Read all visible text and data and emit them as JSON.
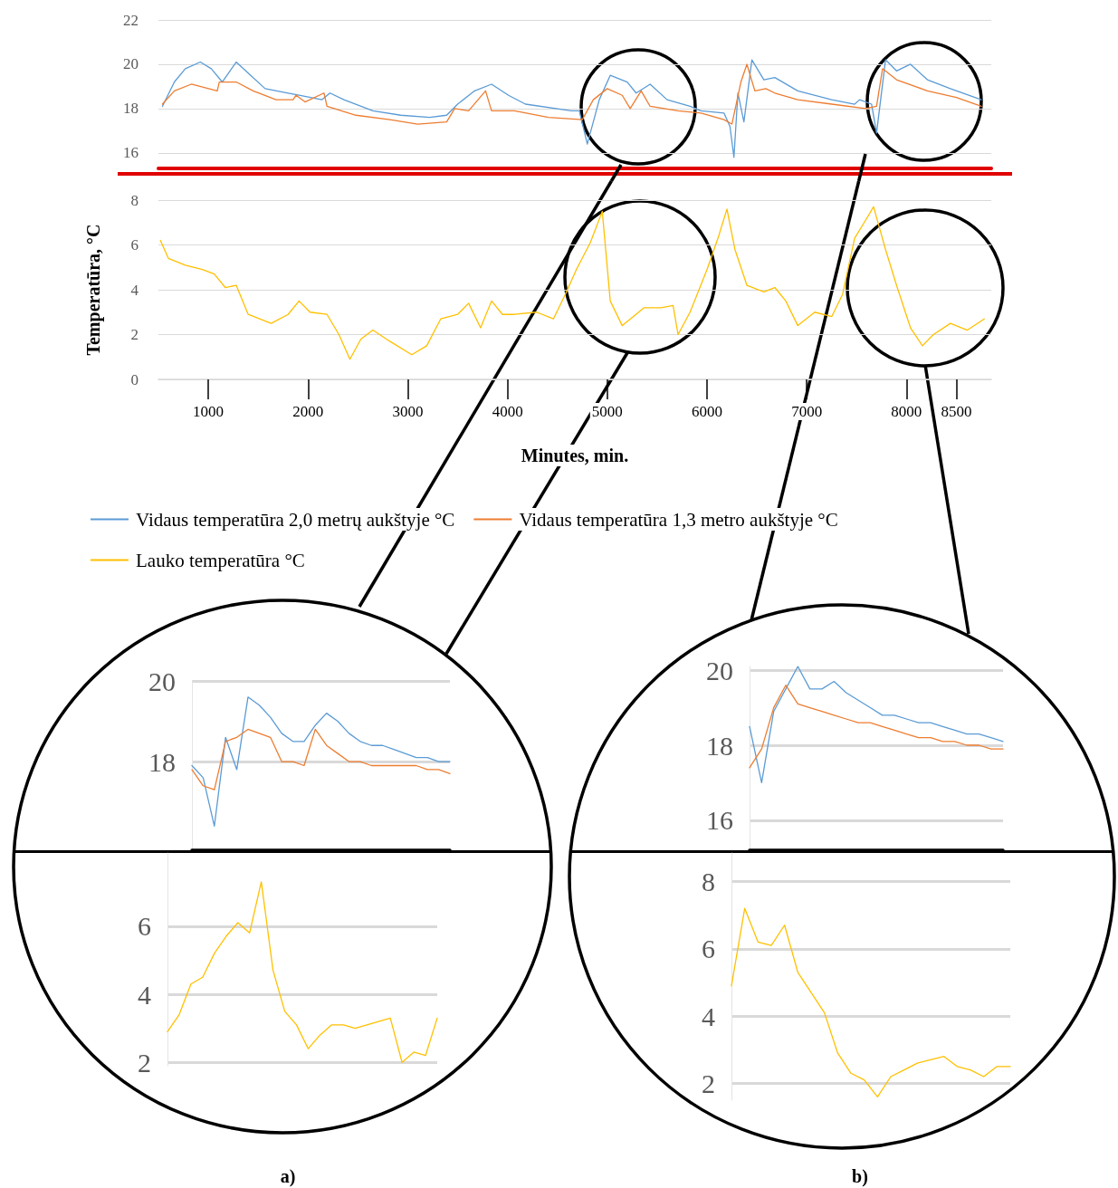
{
  "chart_data": [
    {
      "type": "line",
      "xlim": [
        500,
        8850
      ],
      "xticks": [
        1000,
        2000,
        3000,
        4000,
        5000,
        6000,
        7000,
        8000,
        8500
      ],
      "ylim": [
        15.3,
        22
      ],
      "yticks": [
        16,
        18,
        20,
        22
      ],
      "tick_labels": "y",
      "grid": "y",
      "legend": "bottom",
      "marker": "none",
      "line_style": "solid",
      "series": [
        {
          "name": "Vidaus temperatūra 2,0 metrų aukštyje °C",
          "color": "#5b9bd5",
          "x": [
            540,
            660,
            770,
            920,
            1030,
            1140,
            1280,
            1400,
            1570,
            1800,
            1910,
            2140,
            2220,
            2360,
            2650,
            2930,
            3220,
            3390,
            3500,
            3670,
            3840,
            4010,
            4180,
            4640,
            4720,
            4800,
            4920,
            5030,
            5200,
            5290,
            5430,
            5600,
            5830,
            5940,
            6170,
            6230,
            6270,
            6310,
            6370,
            6450,
            6570,
            6680,
            6910,
            7250,
            7480,
            7530,
            7650,
            7700,
            7790,
            7900,
            8040,
            8210,
            8440,
            8750
          ],
          "values": [
            18.1,
            19.2,
            19.8,
            20.1,
            19.8,
            19.2,
            20.1,
            19.6,
            18.9,
            18.7,
            18.6,
            18.4,
            18.7,
            18.4,
            17.9,
            17.7,
            17.6,
            17.7,
            18.2,
            18.8,
            19.1,
            18.6,
            18.2,
            17.9,
            17.9,
            16.4,
            18.4,
            19.5,
            19.2,
            18.7,
            19.1,
            18.4,
            18.1,
            17.9,
            17.8,
            17.2,
            15.8,
            18.7,
            17.4,
            20.2,
            19.3,
            19.4,
            18.8,
            18.4,
            18.2,
            18.4,
            18.2,
            16.9,
            20.2,
            19.7,
            20.0,
            19.3,
            18.9,
            18.4
          ]
        },
        {
          "name": "Vidaus temperatūra 1,3 metro aukštyje °C",
          "color": "#ed7d31",
          "x": [
            540,
            660,
            830,
            1090,
            1110,
            1280,
            1450,
            1680,
            1850,
            1880,
            1970,
            2160,
            2190,
            2480,
            2820,
            3100,
            3390,
            3470,
            3610,
            3780,
            3840,
            4070,
            4410,
            4750,
            4860,
            5000,
            5150,
            5230,
            5340,
            5430,
            5710,
            5940,
            6170,
            6250,
            6340,
            6400,
            6480,
            6590,
            6680,
            6910,
            7250,
            7590,
            7700,
            7760,
            7900,
            8210,
            8500,
            8750
          ],
          "values": [
            18.2,
            18.8,
            19.1,
            18.8,
            19.2,
            19.2,
            18.8,
            18.4,
            18.4,
            18.6,
            18.3,
            18.7,
            18.1,
            17.7,
            17.5,
            17.3,
            17.4,
            18.0,
            17.9,
            18.8,
            17.9,
            17.9,
            17.6,
            17.5,
            18.4,
            18.9,
            18.6,
            18.0,
            18.8,
            18.1,
            17.9,
            17.8,
            17.5,
            17.3,
            19.2,
            20.0,
            18.8,
            18.9,
            18.7,
            18.4,
            18.2,
            18.0,
            18.1,
            19.8,
            19.3,
            18.8,
            18.5,
            18.1
          ]
        }
      ]
    },
    {
      "type": "line",
      "xlim": [
        500,
        8850
      ],
      "xticks": [
        1000,
        2000,
        3000,
        4000,
        5000,
        6000,
        7000,
        8000,
        8500
      ],
      "ylim": [
        0,
        8
      ],
      "yticks": [
        0,
        2,
        4,
        6,
        8
      ],
      "xlabel": "Minutes, min.",
      "ylabel": "Temperatūra, °C",
      "grid": "y",
      "legend": "bottom",
      "marker": "none",
      "line_style": "solid",
      "series": [
        {
          "name": "Lauko temperatūra °C",
          "color": "#ffc000",
          "x": [
            520,
            600,
            770,
            940,
            1060,
            1170,
            1280,
            1400,
            1630,
            1800,
            1910,
            2020,
            2190,
            2310,
            2420,
            2530,
            2650,
            2820,
            3040,
            3190,
            3330,
            3500,
            3610,
            3730,
            3840,
            3950,
            4070,
            4290,
            4460,
            4580,
            4690,
            4830,
            4950,
            5030,
            5150,
            5260,
            5370,
            5540,
            5660,
            5710,
            5830,
            6000,
            6110,
            6200,
            6280,
            6400,
            6570,
            6680,
            6790,
            6910,
            7080,
            7250,
            7360,
            7480,
            7590,
            7670,
            7790,
            7900,
            8040,
            8160,
            8270,
            8440,
            8610,
            8780
          ],
          "values": [
            6.2,
            5.4,
            5.1,
            4.9,
            4.7,
            4.1,
            4.2,
            2.9,
            2.5,
            2.9,
            3.5,
            3.0,
            2.9,
            2.0,
            0.9,
            1.8,
            2.2,
            1.7,
            1.1,
            1.5,
            2.7,
            2.9,
            3.4,
            2.3,
            3.5,
            2.9,
            2.9,
            3.0,
            2.7,
            3.8,
            4.9,
            6.1,
            7.5,
            3.5,
            2.4,
            2.8,
            3.2,
            3.2,
            3.3,
            2.0,
            3.0,
            4.9,
            6.3,
            7.6,
            5.8,
            4.2,
            3.9,
            4.1,
            3.5,
            2.4,
            3.0,
            2.8,
            3.8,
            6.3,
            7.1,
            7.7,
            5.8,
            4.2,
            2.3,
            1.5,
            2.0,
            2.5,
            2.2,
            2.7
          ]
        }
      ]
    },
    {
      "type": "line",
      "categories": [
        null,
        null,
        null,
        null,
        null,
        null,
        null,
        null,
        null,
        null,
        null,
        null,
        null,
        null,
        null,
        null,
        null,
        null,
        null,
        null,
        null,
        null,
        null,
        null
      ],
      "ylim": [
        15.8,
        20
      ],
      "yticks": [
        18,
        20
      ],
      "tick_labels": "y",
      "grid": "y",
      "marker": "none",
      "line_style": "solid",
      "series": [
        {
          "color": "#5b9bd5",
          "values": [
            17.9,
            17.6,
            16.4,
            18.6,
            17.8,
            19.6,
            19.4,
            19.1,
            18.7,
            18.5,
            18.5,
            18.9,
            19.2,
            19.0,
            18.7,
            18.5,
            18.4,
            18.4,
            18.3,
            18.2,
            18.1,
            18.1,
            18.0,
            18.0
          ]
        },
        {
          "color": "#ed7d31",
          "values": [
            17.8,
            17.4,
            17.3,
            18.5,
            18.6,
            18.8,
            18.7,
            18.6,
            18.0,
            18.0,
            17.9,
            18.8,
            18.4,
            18.2,
            18.0,
            18.0,
            17.9,
            17.9,
            17.9,
            17.9,
            17.9,
            17.8,
            17.8,
            17.7
          ]
        }
      ]
    },
    {
      "type": "line",
      "categories": [
        null,
        null,
        null,
        null,
        null,
        null,
        null,
        null,
        null,
        null,
        null,
        null,
        null,
        null,
        null,
        null,
        null,
        null,
        null,
        null,
        null,
        null,
        null,
        null
      ],
      "ylim": [
        1.9,
        8.2
      ],
      "yticks": [
        2,
        4,
        6
      ],
      "tick_labels": "y",
      "grid": "y",
      "marker": "none",
      "line_style": "solid",
      "annotations": [
        "a)"
      ],
      "series": [
        {
          "color": "#ffc000",
          "values": [
            2.9,
            3.4,
            4.3,
            4.5,
            5.2,
            5.7,
            6.1,
            5.8,
            7.3,
            4.7,
            3.5,
            3.1,
            2.4,
            2.8,
            3.1,
            3.1,
            3.0,
            3.1,
            3.2,
            3.3,
            2.0,
            2.3,
            2.2,
            3.3
          ]
        }
      ]
    },
    {
      "type": "line",
      "categories": [
        null,
        null,
        null,
        null,
        null,
        null,
        null,
        null,
        null,
        null,
        null,
        null,
        null,
        null,
        null,
        null,
        null,
        null,
        null,
        null,
        null,
        null
      ],
      "ylim": [
        15.2,
        20.1
      ],
      "yticks": [
        16,
        18,
        20
      ],
      "tick_labels": "y",
      "grid": "y",
      "marker": "none",
      "line_style": "solid",
      "series": [
        {
          "color": "#5b9bd5",
          "values": [
            18.5,
            17.0,
            18.9,
            19.5,
            20.1,
            19.5,
            19.5,
            19.7,
            19.4,
            19.2,
            19.0,
            18.8,
            18.8,
            18.7,
            18.6,
            18.6,
            18.5,
            18.4,
            18.3,
            18.3,
            18.2,
            18.1
          ]
        },
        {
          "color": "#ed7d31",
          "values": [
            17.4,
            17.9,
            19.0,
            19.6,
            19.1,
            19.0,
            18.9,
            18.8,
            18.7,
            18.6,
            18.6,
            18.5,
            18.4,
            18.3,
            18.2,
            18.2,
            18.1,
            18.1,
            18.0,
            18.0,
            17.9,
            17.9
          ]
        }
      ]
    },
    {
      "type": "line",
      "categories": [
        null,
        null,
        null,
        null,
        null,
        null,
        null,
        null,
        null,
        null,
        null,
        null,
        null,
        null,
        null,
        null,
        null,
        null,
        null,
        null,
        null,
        null
      ],
      "ylim": [
        1.5,
        8.9
      ],
      "yticks": [
        2,
        4,
        6,
        8
      ],
      "tick_labels": "y",
      "grid": "y",
      "marker": "none",
      "line_style": "solid",
      "annotations": [
        "b)"
      ],
      "series": [
        {
          "color": "#ffc000",
          "values": [
            4.9,
            7.2,
            6.2,
            6.1,
            6.7,
            5.3,
            4.7,
            4.1,
            2.9,
            2.3,
            2.1,
            1.6,
            2.2,
            2.4,
            2.6,
            2.7,
            2.8,
            2.5,
            2.4,
            2.2,
            2.5,
            2.5
          ]
        }
      ]
    }
  ]
}
